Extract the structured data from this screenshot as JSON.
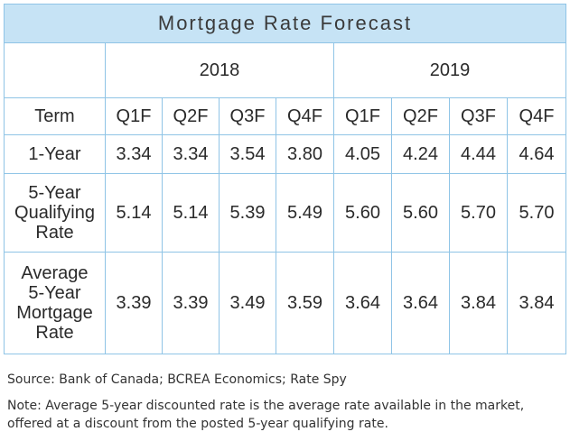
{
  "chart_data": {
    "type": "table",
    "title": "Mortgage Rate Forecast",
    "years": [
      "2018",
      "2019"
    ],
    "row_header": "Term",
    "columns": [
      "Q1F",
      "Q2F",
      "Q3F",
      "Q4F",
      "Q1F",
      "Q2F",
      "Q3F",
      "Q4F"
    ],
    "rows": [
      {
        "label": "1-Year",
        "values": [
          "3.34",
          "3.34",
          "3.54",
          "3.80",
          "4.05",
          "4.24",
          "4.44",
          "4.64"
        ]
      },
      {
        "label": "5-Year\nQualifying\nRate",
        "values": [
          "5.14",
          "5.14",
          "5.39",
          "5.49",
          "5.60",
          "5.60",
          "5.70",
          "5.70"
        ]
      },
      {
        "label": "Average\n5-Year\nMortgage\nRate",
        "values": [
          "3.39",
          "3.39",
          "3.49",
          "3.59",
          "3.64",
          "3.64",
          "3.84",
          "3.84"
        ]
      }
    ]
  },
  "footer": {
    "source": "Source: Bank of Canada; BCREA Economics; Rate Spy",
    "note": "Note: Average 5-year discounted rate is the average rate available in the market, offered at a discount from the posted 5-year qualifying rate."
  },
  "colors": {
    "title_bg": "#c6e3f5",
    "grid": "#8fc4e6"
  }
}
